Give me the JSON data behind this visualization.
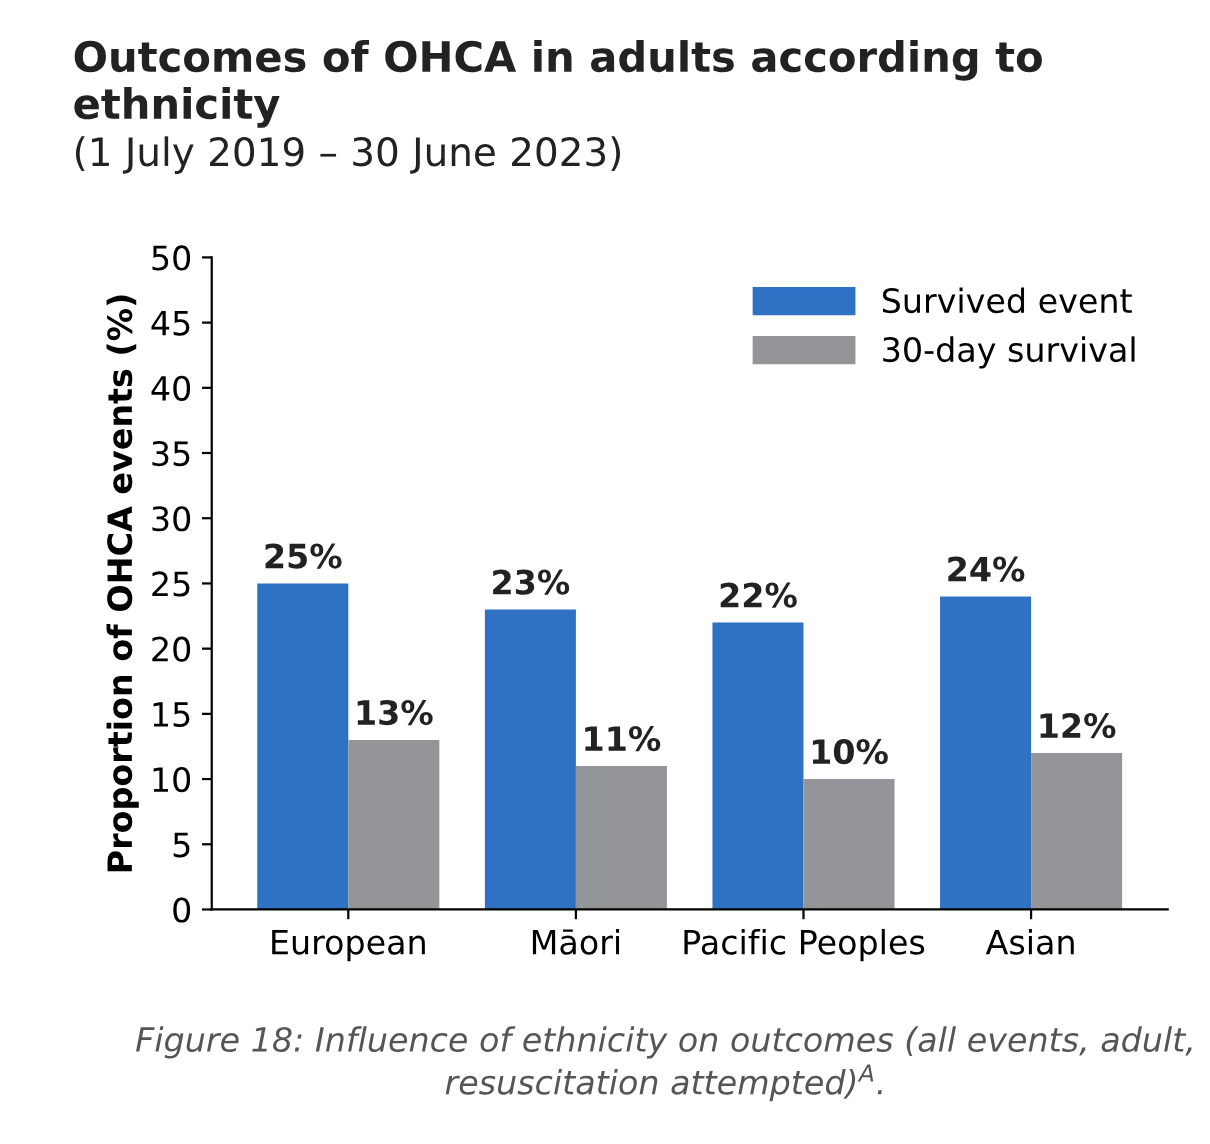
{
  "chart_data": {
    "type": "bar",
    "title": "Outcomes of OHCA in adults according to ethnicity",
    "subtitle": "(1 July 2019 – 30 June 2023)",
    "ylabel": "Proportion of OHCA events (%)",
    "categories": [
      "European",
      "Māori",
      "Pacific Peoples",
      "Asian"
    ],
    "series": [
      {
        "name": "Survived event",
        "color": "#2f72c4",
        "values": [
          25,
          23,
          22,
          24
        ],
        "value_labels": [
          "25%",
          "23%",
          "22%",
          "24%"
        ]
      },
      {
        "name": "30-day survival",
        "color": "#939598",
        "values": [
          13,
          11,
          10,
          12
        ],
        "value_labels": [
          "13%",
          "11%",
          "10%",
          "12%"
        ]
      }
    ],
    "ylim": [
      0,
      50
    ],
    "yticks": [
      0,
      5,
      10,
      15,
      20,
      25,
      30,
      35,
      40,
      45,
      50
    ],
    "grid": false,
    "legend": "top right",
    "annotations": [
      "Figure 18: Influence of ethnicity on outcomes (all events, adult, resuscitation attempted)$^{A}$."
    ]
  }
}
